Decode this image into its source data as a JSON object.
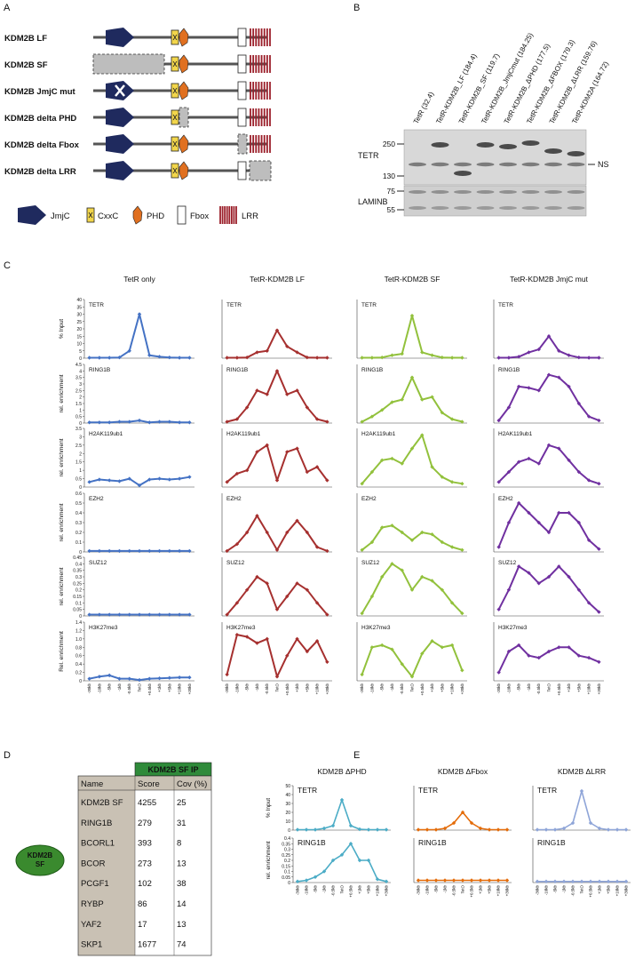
{
  "panel_labels": [
    "A",
    "B",
    "C",
    "D",
    "E"
  ],
  "domains": {
    "constructs": [
      "KDM2B LF",
      "KDM2B SF",
      "KDM2B JmjC mut",
      "KDM2B delta PHD",
      "KDM2B delta Fbox",
      "KDM2B delta LRR"
    ],
    "legend": [
      "JmjC",
      "CxxC",
      "PHD",
      "Fbox",
      "LRR"
    ]
  },
  "blot": {
    "lanes": [
      "TetR (32.4)",
      "TetR-KDM2B_LF (184.4)",
      "TetR-KDM2B_SF (119.7)",
      "TetR-KDM2B_JmjCmut (184.25)",
      "TetR-KDM2B_ΔPHD (177.5)",
      "TetR-KDM2B_ΔFBOX (179.3)",
      "TetR-KDM2B_ΔLRR (159.76)",
      "TetR-KDM2A (164.72)"
    ],
    "bands": [
      "TETR",
      "LAMINB"
    ],
    "markers": [
      250,
      130,
      75,
      55
    ],
    "ns_label": "NS"
  },
  "table": {
    "bait": [
      "KDM2B",
      "SF"
    ],
    "group_header": "KDM2B SF IP",
    "columns": [
      "Name",
      "Score",
      "Cov (%)"
    ],
    "rows": [
      [
        "KDM2B SF",
        4255,
        25
      ],
      [
        "RING1B",
        279,
        31
      ],
      [
        "BCORL1",
        393,
        8
      ],
      [
        "BCOR",
        273,
        13
      ],
      [
        "PCGF1",
        102,
        38
      ],
      [
        "RYBP",
        86,
        14
      ],
      [
        "YAF2",
        17,
        13
      ],
      [
        "SKP1",
        1677,
        74
      ]
    ]
  },
  "chart_data": [
    {
      "type": "line",
      "title": "TetR only",
      "label": "TETR",
      "ylabel": "% Input",
      "color": "#4472c4",
      "values": [
        0.3,
        0.3,
        0.3,
        0.5,
        5,
        30,
        2,
        1,
        0.5,
        0.3,
        0.3
      ],
      "ylim": [
        0,
        40
      ],
      "yticks": [
        0,
        5,
        10,
        15,
        20,
        25,
        30,
        35,
        40
      ]
    },
    {
      "type": "line",
      "title": "TetR-KDM2B LF",
      "label": "TETR",
      "color": "#a6302f",
      "values": [
        0.3,
        0.3,
        0.5,
        4,
        5,
        19,
        8,
        4,
        0.5,
        0.3,
        0.3
      ],
      "ylim": [
        0,
        40
      ]
    },
    {
      "type": "line",
      "title": "TetR-KDM2B SF",
      "label": "TETR",
      "color": "#92c13c",
      "values": [
        0.3,
        0.3,
        0.5,
        2,
        3,
        29,
        4,
        2,
        0.5,
        0.3,
        0.3
      ],
      "ylim": [
        0,
        40
      ]
    },
    {
      "type": "line",
      "title": "TetR-KDM2B JmjC mut",
      "label": "TETR",
      "color": "#7030a0",
      "values": [
        0.3,
        0.3,
        1,
        4,
        6,
        15,
        5,
        2,
        0.5,
        0.3,
        0.3
      ],
      "ylim": [
        0,
        40
      ]
    },
    {
      "type": "line",
      "label": "RING1B",
      "ylabel": "rel. enrichment",
      "color": "#4472c4",
      "values": [
        0.05,
        0.05,
        0.05,
        0.1,
        0.1,
        0.2,
        0.05,
        0.1,
        0.1,
        0.05,
        0.05
      ],
      "ylim": [
        0,
        4.5
      ],
      "yticks": [
        0,
        0.5,
        1,
        1.5,
        2,
        2.5,
        3,
        3.5,
        4,
        4.5
      ]
    },
    {
      "type": "line",
      "label": "RING1B",
      "color": "#a6302f",
      "values": [
        0.1,
        0.3,
        1.2,
        2.5,
        2.2,
        4,
        2.2,
        2.5,
        1.2,
        0.3,
        0.1
      ],
      "ylim": [
        0,
        4.5
      ]
    },
    {
      "type": "line",
      "label": "RING1B",
      "color": "#92c13c",
      "values": [
        0.1,
        0.5,
        1,
        1.6,
        1.8,
        3.5,
        1.8,
        2,
        0.8,
        0.3,
        0.1
      ],
      "ylim": [
        0,
        4.5
      ]
    },
    {
      "type": "line",
      "label": "RING1B",
      "color": "#7030a0",
      "values": [
        0.2,
        1.2,
        2.8,
        2.7,
        2.5,
        3.7,
        3.5,
        2.8,
        1.5,
        0.5,
        0.2
      ],
      "ylim": [
        0,
        4.5
      ]
    },
    {
      "type": "line",
      "label": "H2AK119ub1",
      "ylabel": "rel. enrichment",
      "color": "#4472c4",
      "values": [
        0.3,
        0.45,
        0.4,
        0.35,
        0.5,
        0.1,
        0.45,
        0.5,
        0.45,
        0.5,
        0.6
      ],
      "ylim": [
        0,
        3.5
      ],
      "yticks": [
        0,
        0.5,
        1,
        1.5,
        2,
        2.5,
        3,
        3.5
      ]
    },
    {
      "type": "line",
      "label": "H2AK119ub1",
      "color": "#a6302f",
      "values": [
        0.3,
        0.8,
        1,
        2.1,
        2.5,
        0.4,
        2.1,
        2.3,
        0.9,
        1.2,
        0.4
      ],
      "ylim": [
        0,
        3.5
      ]
    },
    {
      "type": "line",
      "label": "H2AK119ub1",
      "color": "#92c13c",
      "values": [
        0.2,
        0.9,
        1.6,
        1.7,
        1.4,
        2.3,
        3.1,
        1.2,
        0.6,
        0.3,
        0.2
      ],
      "ylim": [
        0,
        3.5
      ]
    },
    {
      "type": "line",
      "label": "H2AK119ub1",
      "color": "#7030a0",
      "values": [
        0.3,
        0.9,
        1.5,
        1.7,
        1.4,
        2.5,
        2.3,
        1.6,
        0.9,
        0.4,
        0.2
      ],
      "ylim": [
        0,
        3.5
      ]
    },
    {
      "type": "line",
      "label": "EZH2",
      "ylabel": "rel. enrichment",
      "color": "#4472c4",
      "values": [
        0.01,
        0.01,
        0.01,
        0.01,
        0.01,
        0.01,
        0.01,
        0.01,
        0.01,
        0.01,
        0.01
      ],
      "ylim": [
        0,
        0.6
      ],
      "yticks": [
        0,
        0.1,
        0.2,
        0.3,
        0.4,
        0.5,
        0.6
      ]
    },
    {
      "type": "line",
      "label": "EZH2",
      "color": "#a6302f",
      "values": [
        0.01,
        0.08,
        0.2,
        0.37,
        0.2,
        0.02,
        0.2,
        0.32,
        0.2,
        0.05,
        0.01
      ],
      "ylim": [
        0,
        0.6
      ]
    },
    {
      "type": "line",
      "label": "EZH2",
      "color": "#92c13c",
      "values": [
        0.02,
        0.1,
        0.25,
        0.27,
        0.2,
        0.12,
        0.2,
        0.18,
        0.1,
        0.05,
        0.02
      ],
      "ylim": [
        0,
        0.6
      ]
    },
    {
      "type": "line",
      "label": "EZH2",
      "color": "#7030a0",
      "values": [
        0.05,
        0.3,
        0.5,
        0.4,
        0.3,
        0.2,
        0.4,
        0.4,
        0.3,
        0.12,
        0.03
      ],
      "ylim": [
        0,
        0.6
      ]
    },
    {
      "type": "line",
      "label": "SUZ12",
      "ylabel": "rel. enrichment",
      "color": "#4472c4",
      "values": [
        0.01,
        0.01,
        0.01,
        0.01,
        0.01,
        0.01,
        0.01,
        0.01,
        0.01,
        0.01,
        0.01
      ],
      "ylim": [
        0,
        0.45
      ],
      "yticks": [
        0,
        0.05,
        0.1,
        0.15,
        0.2,
        0.25,
        0.3,
        0.35,
        0.4,
        0.45
      ]
    },
    {
      "type": "line",
      "label": "SUZ12",
      "color": "#a6302f",
      "values": [
        0.01,
        0.1,
        0.2,
        0.3,
        0.25,
        0.05,
        0.15,
        0.25,
        0.2,
        0.1,
        0.01
      ],
      "ylim": [
        0,
        0.45
      ]
    },
    {
      "type": "line",
      "label": "SUZ12",
      "color": "#92c13c",
      "values": [
        0.02,
        0.15,
        0.3,
        0.4,
        0.35,
        0.2,
        0.3,
        0.27,
        0.2,
        0.1,
        0.02
      ],
      "ylim": [
        0,
        0.45
      ]
    },
    {
      "type": "line",
      "label": "SUZ12",
      "color": "#7030a0",
      "values": [
        0.05,
        0.2,
        0.38,
        0.33,
        0.25,
        0.3,
        0.38,
        0.3,
        0.2,
        0.1,
        0.03
      ],
      "ylim": [
        0,
        0.45
      ]
    },
    {
      "type": "line",
      "label": "H3K27me3",
      "ylabel": "Rel. enrichment",
      "color": "#4472c4",
      "values": [
        0.05,
        0.1,
        0.13,
        0.05,
        0.05,
        0.02,
        0.05,
        0.06,
        0.07,
        0.08,
        0.08
      ],
      "ylim": [
        0,
        1.4
      ],
      "yticks": [
        0,
        0.2,
        0.4,
        0.6,
        0.8,
        {
          "value": 1,
          "label": "1.0"
        },
        1.2,
        1.4
      ],
      "categories": [
        "-30kb",
        "-10kb",
        "-5kb",
        "-1kb",
        "-0.5kb",
        "TetO",
        "+0.5kb",
        "+1kb",
        "+5kb",
        "+10kb",
        "+30kb"
      ]
    },
    {
      "type": "line",
      "label": "H3K27me3",
      "color": "#a6302f",
      "values": [
        0.15,
        1.1,
        1.05,
        0.9,
        1,
        0.1,
        0.6,
        1,
        0.7,
        0.95,
        0.45
      ],
      "ylim": [
        0,
        1.4
      ],
      "categories": [
        "-30kb",
        "-10kb",
        "-5kb",
        "-1kb",
        "-0.5kb",
        "TetO",
        "+0.5kb",
        "+1kb",
        "+5kb",
        "+10kb",
        "+30kb"
      ]
    },
    {
      "type": "line",
      "label": "H3K27me3",
      "color": "#92c13c",
      "values": [
        0.15,
        0.8,
        0.85,
        0.75,
        0.4,
        0.1,
        0.65,
        0.95,
        0.8,
        0.85,
        0.25
      ],
      "ylim": [
        0,
        1.4
      ],
      "categories": [
        "-30kb",
        "-10kb",
        "-5kb",
        "-1kb",
        "-0.5kb",
        "TetO",
        "+0.5kb",
        "+1kb",
        "+5kb",
        "+10kb",
        "+30kb"
      ]
    },
    {
      "type": "line",
      "label": "H3K27me3",
      "color": "#7030a0",
      "values": [
        0.2,
        0.7,
        0.85,
        0.6,
        0.55,
        0.7,
        0.8,
        0.8,
        0.6,
        0.55,
        0.45
      ],
      "ylim": [
        0,
        1.4
      ],
      "categories": [
        "-30kb",
        "-10kb",
        "-5kb",
        "-1kb",
        "-0.5kb",
        "TetO",
        "+0.5kb",
        "+1kb",
        "+5kb",
        "+10kb",
        "+30kb"
      ]
    },
    {
      "type": "line",
      "title": "KDM2B ΔPHD",
      "label": "TETR",
      "ylabel": "% Input",
      "color": "#4bacc6",
      "values": [
        0.5,
        0.5,
        0.5,
        2,
        5,
        34,
        5,
        1,
        0.5,
        0.5,
        0.5
      ],
      "ylim": [
        0,
        50
      ],
      "yticks": [
        0,
        10,
        20,
        30,
        40,
        50
      ]
    },
    {
      "type": "line",
      "title": "KDM2B ΔFbox",
      "label": "TETR",
      "color": "#e46c0a",
      "values": [
        0.5,
        0.5,
        0.5,
        2,
        8,
        20,
        8,
        2,
        0.5,
        0.5,
        0.5
      ],
      "ylim": [
        0,
        50
      ]
    },
    {
      "type": "line",
      "title": "KDM2B ΔLRR",
      "label": "TETR",
      "color": "#8fa5d8",
      "values": [
        0.5,
        0.5,
        0.5,
        2,
        8,
        44,
        8,
        2,
        0.5,
        0.5,
        0.5
      ],
      "ylim": [
        0,
        50
      ]
    },
    {
      "type": "line",
      "label": "RING1B",
      "ylabel": "rel. enrichment",
      "color": "#4bacc6",
      "values": [
        0.01,
        0.02,
        0.05,
        0.1,
        0.2,
        0.25,
        0.35,
        0.2,
        0.2,
        0.03,
        0.01
      ],
      "ylim": [
        0,
        0.4
      ],
      "yticks": [
        0,
        0.05,
        0.1,
        0.15,
        0.2,
        0.25,
        0.3,
        0.35,
        0.4
      ],
      "categories": [
        "-30kb",
        "-10kb",
        "-5kb",
        "-1kb",
        "-0.5kb",
        "TetO",
        "+0.5kb",
        "+1kb",
        "+5kb",
        "+10kb",
        "+30kb"
      ]
    },
    {
      "type": "line",
      "label": "RING1B",
      "color": "#e46c0a",
      "values": [
        0.02,
        0.02,
        0.02,
        0.02,
        0.02,
        0.02,
        0.02,
        0.02,
        0.02,
        0.02,
        0.02
      ],
      "ylim": [
        0,
        0.4
      ],
      "categories": [
        "-30kb",
        "-10kb",
        "-5kb",
        "-1kb",
        "-0.5kb",
        "TetO",
        "+0.5kb",
        "+1kb",
        "+5kb",
        "+10kb",
        "+30kb"
      ]
    },
    {
      "type": "line",
      "label": "RING1B",
      "color": "#8fa5d8",
      "values": [
        0.01,
        0.01,
        0.01,
        0.01,
        0.01,
        0.01,
        0.01,
        0.01,
        0.01,
        0.01,
        0.01
      ],
      "ylim": [
        0,
        0.4
      ],
      "categories": [
        "-30kb",
        "-10kb",
        "-5kb",
        "-1kb",
        "-0.5kb",
        "TetO",
        "+0.5kb",
        "+1kb",
        "+5kb",
        "+10kb",
        "+30kb"
      ]
    }
  ]
}
